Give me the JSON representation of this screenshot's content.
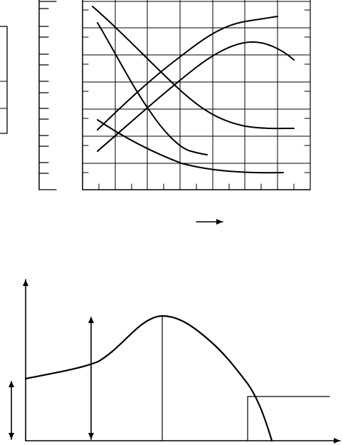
{
  "figure": {
    "top_diagram": {
      "type": "performance-curve-grid",
      "curves": 5,
      "grid_columns": 7,
      "grid_rows": 7,
      "direction_arrow": "right-arrow-icon"
    },
    "bottom_diagram": {
      "type": "single-peak-curve",
      "axes": [
        "x-axis-arrow-icon",
        "y-axis-arrow-icon"
      ],
      "markers": [
        "double-arrow-left-icon",
        "double-arrow-middle-icon"
      ]
    },
    "colors": {
      "ink": "#000000",
      "background": "#ffffff"
    }
  }
}
